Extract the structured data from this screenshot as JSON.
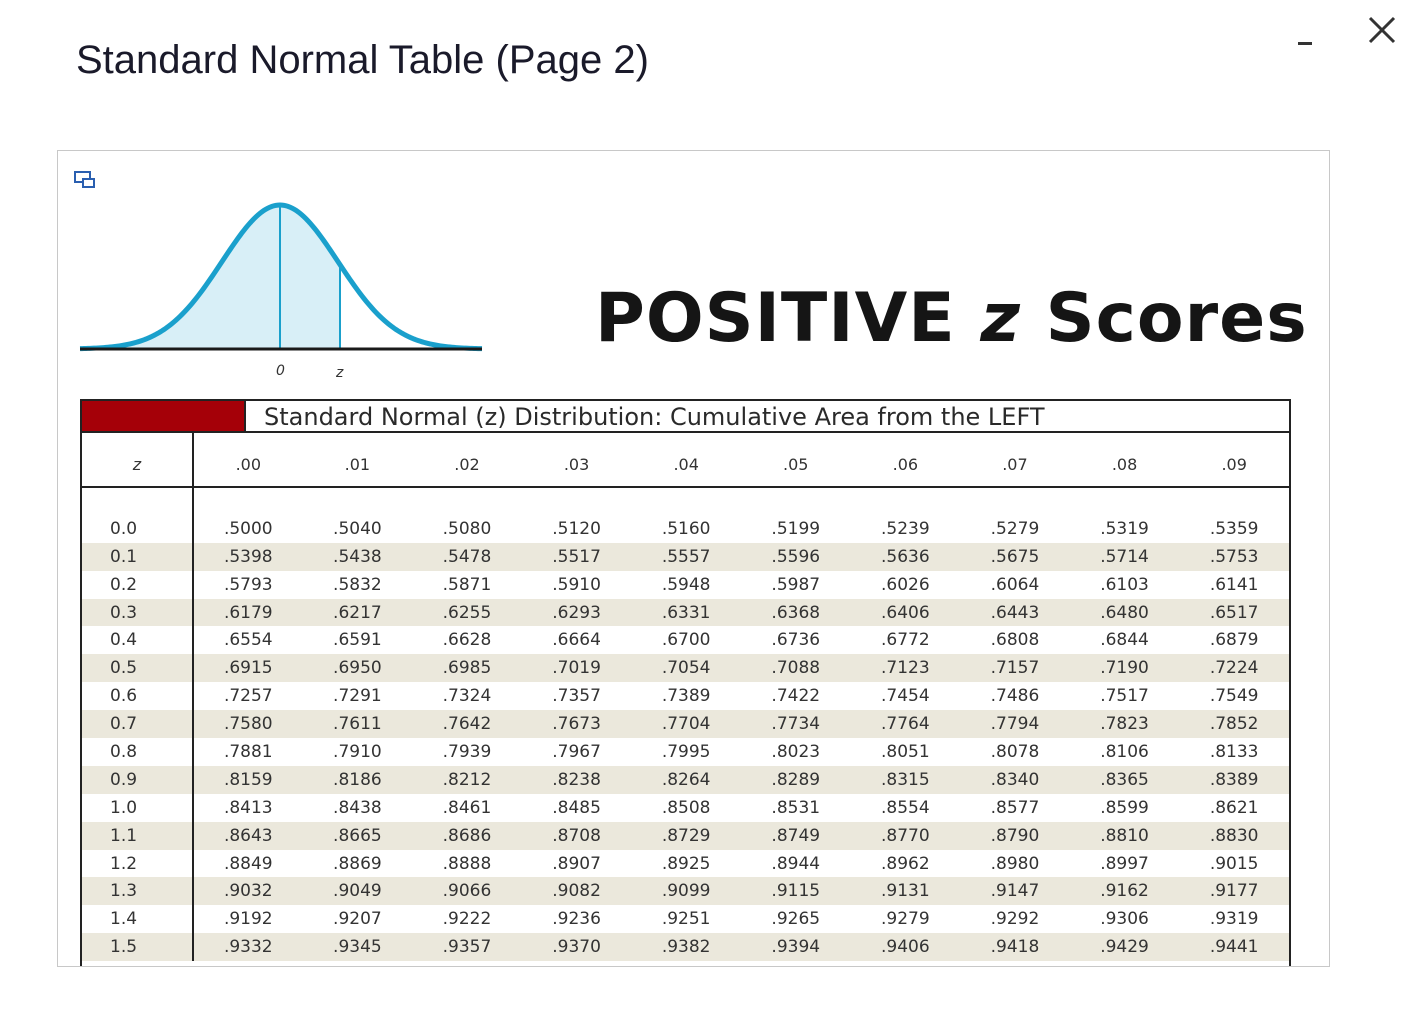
{
  "window": {
    "title": "Standard Normal Table (Page 2)",
    "minimize_label": "_",
    "close_label": "×"
  },
  "figure": {
    "heading_main": "POSITIVE ",
    "heading_var": "z",
    "heading_tail": " Scores",
    "curve_label_zero": "0",
    "curve_label_z": "z",
    "curve_color": "#1aa0cc",
    "curve_fill": "#d8eff7",
    "banner_text": "Standard Normal (z) Distribution: Cumulative Area from the LEFT",
    "banner_accent": "#a50008"
  },
  "table": {
    "z_header": "z",
    "columns": [
      ".00",
      ".01",
      ".02",
      ".03",
      ".04",
      ".05",
      ".06",
      ".07",
      ".08",
      ".09"
    ],
    "rows": [
      {
        "z": "0.0",
        "values": [
          ".5000",
          ".5040",
          ".5080",
          ".5120",
          ".5160",
          ".5199",
          ".5239",
          ".5279",
          ".5319",
          ".5359"
        ]
      },
      {
        "z": "0.1",
        "values": [
          ".5398",
          ".5438",
          ".5478",
          ".5517",
          ".5557",
          ".5596",
          ".5636",
          ".5675",
          ".5714",
          ".5753"
        ]
      },
      {
        "z": "0.2",
        "values": [
          ".5793",
          ".5832",
          ".5871",
          ".5910",
          ".5948",
          ".5987",
          ".6026",
          ".6064",
          ".6103",
          ".6141"
        ]
      },
      {
        "z": "0.3",
        "values": [
          ".6179",
          ".6217",
          ".6255",
          ".6293",
          ".6331",
          ".6368",
          ".6406",
          ".6443",
          ".6480",
          ".6517"
        ]
      },
      {
        "z": "0.4",
        "values": [
          ".6554",
          ".6591",
          ".6628",
          ".6664",
          ".6700",
          ".6736",
          ".6772",
          ".6808",
          ".6844",
          ".6879"
        ]
      },
      {
        "z": "0.5",
        "values": [
          ".6915",
          ".6950",
          ".6985",
          ".7019",
          ".7054",
          ".7088",
          ".7123",
          ".7157",
          ".7190",
          ".7224"
        ]
      },
      {
        "z": "0.6",
        "values": [
          ".7257",
          ".7291",
          ".7324",
          ".7357",
          ".7389",
          ".7422",
          ".7454",
          ".7486",
          ".7517",
          ".7549"
        ]
      },
      {
        "z": "0.7",
        "values": [
          ".7580",
          ".7611",
          ".7642",
          ".7673",
          ".7704",
          ".7734",
          ".7764",
          ".7794",
          ".7823",
          ".7852"
        ]
      },
      {
        "z": "0.8",
        "values": [
          ".7881",
          ".7910",
          ".7939",
          ".7967",
          ".7995",
          ".8023",
          ".8051",
          ".8078",
          ".8106",
          ".8133"
        ]
      },
      {
        "z": "0.9",
        "values": [
          ".8159",
          ".8186",
          ".8212",
          ".8238",
          ".8264",
          ".8289",
          ".8315",
          ".8340",
          ".8365",
          ".8389"
        ]
      },
      {
        "z": "1.0",
        "values": [
          ".8413",
          ".8438",
          ".8461",
          ".8485",
          ".8508",
          ".8531",
          ".8554",
          ".8577",
          ".8599",
          ".8621"
        ]
      },
      {
        "z": "1.1",
        "values": [
          ".8643",
          ".8665",
          ".8686",
          ".8708",
          ".8729",
          ".8749",
          ".8770",
          ".8790",
          ".8810",
          ".8830"
        ]
      },
      {
        "z": "1.2",
        "values": [
          ".8849",
          ".8869",
          ".8888",
          ".8907",
          ".8925",
          ".8944",
          ".8962",
          ".8980",
          ".8997",
          ".9015"
        ]
      },
      {
        "z": "1.3",
        "values": [
          ".9032",
          ".9049",
          ".9066",
          ".9082",
          ".9099",
          ".9115",
          ".9131",
          ".9147",
          ".9162",
          ".9177"
        ]
      },
      {
        "z": "1.4",
        "values": [
          ".9192",
          ".9207",
          ".9222",
          ".9236",
          ".9251",
          ".9265",
          ".9279",
          ".9292",
          ".9306",
          ".9319"
        ]
      },
      {
        "z": "1.5",
        "values": [
          ".9332",
          ".9345",
          ".9357",
          ".9370",
          ".9382",
          ".9394",
          ".9406",
          ".9418",
          ".9429",
          ".9441"
        ]
      }
    ]
  }
}
